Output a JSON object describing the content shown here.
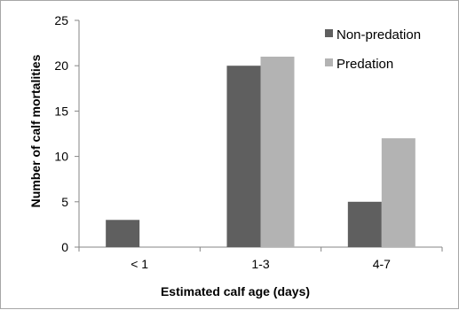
{
  "chart_data": {
    "type": "bar",
    "categories": [
      "< 1",
      "1-3",
      "4-7"
    ],
    "series": [
      {
        "name": "Non-predation",
        "values": [
          3,
          20,
          5
        ],
        "color": "#5f5f5f"
      },
      {
        "name": "Predation",
        "values": [
          0,
          21,
          12
        ],
        "color": "#b3b3b3"
      }
    ],
    "xlabel": "Estimated calf age (days)",
    "ylabel": "Number of calf mortalities",
    "ylim": [
      0,
      25
    ],
    "yticks": [
      0,
      5,
      10,
      15,
      20,
      25
    ],
    "grid": false,
    "legend_position": "top-right"
  }
}
